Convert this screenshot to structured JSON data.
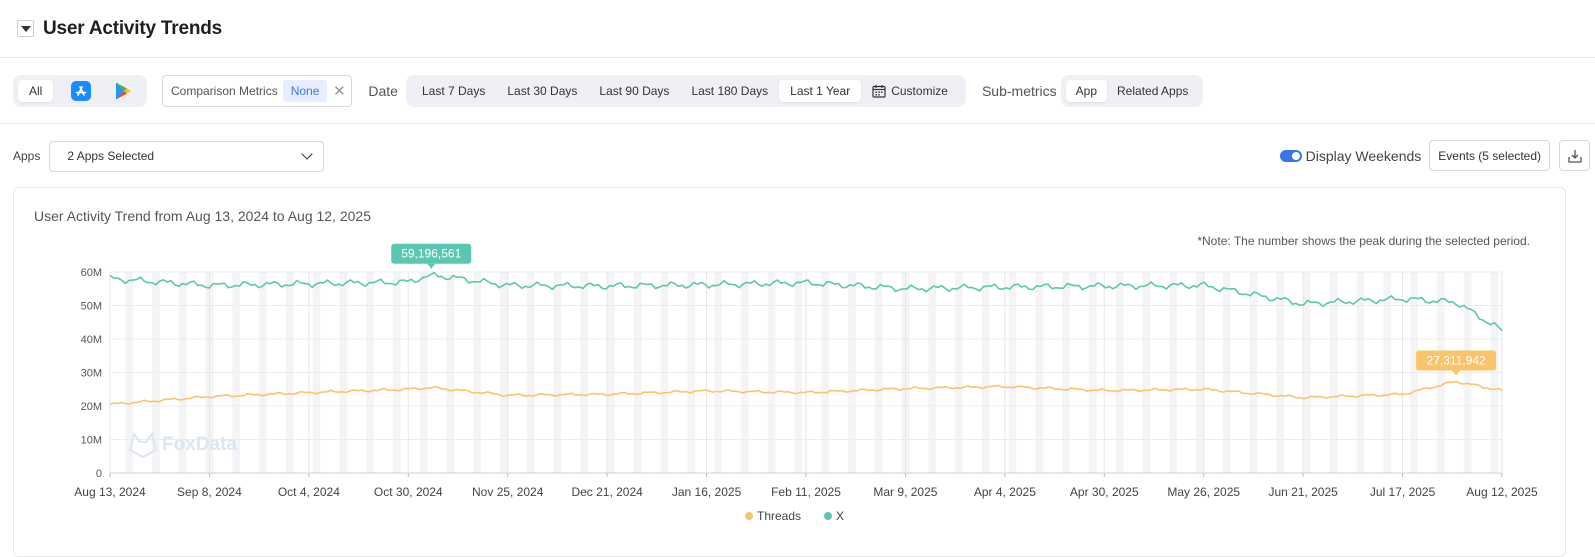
{
  "header": {
    "title": "User Activity Trends"
  },
  "filters": {
    "store_all": "All",
    "comparison_label": "Comparison Metrics",
    "comparison_value": "None",
    "date_label": "Date",
    "date_options": [
      "Last 7 Days",
      "Last 30 Days",
      "Last 90 Days",
      "Last 180 Days",
      "Last 1 Year"
    ],
    "date_selected": "Last 1 Year",
    "customize": "Customize",
    "submetrics_label": "Sub-metrics",
    "submetrics_options": [
      "App",
      "Related Apps"
    ],
    "submetrics_selected": "App"
  },
  "apps": {
    "label": "Apps",
    "selected": "2 Apps Selected",
    "display_weekends": "Display Weekends",
    "display_weekends_on": true,
    "events": "Events (5 selected)"
  },
  "chart": {
    "title": "User Activity Trend from Aug 13, 2024 to Aug 12, 2025",
    "note": "*Note: The number shows the peak during the selected period.",
    "watermark": "FoxData"
  },
  "chart_data": {
    "type": "line",
    "x_tick_labels": [
      "Aug 13, 2024",
      "Sep 8, 2024",
      "Oct 4, 2024",
      "Oct 30, 2024",
      "Nov 25, 2024",
      "Dec 21, 2024",
      "Jan 16, 2025",
      "Feb 11, 2025",
      "Mar 9, 2025",
      "Apr 4, 2025",
      "Apr 30, 2025",
      "May 26, 2025",
      "Jun 21, 2025",
      "Jul 17, 2025",
      "Aug 12, 2025"
    ],
    "y_tick_labels": [
      "0",
      "10M",
      "20M",
      "30M",
      "40M",
      "50M",
      "60M"
    ],
    "ylim": [
      0,
      60000000
    ],
    "x": [
      "Aug 13, 2024",
      "Sep 8, 2024",
      "Oct 4, 2024",
      "Oct 30, 2024",
      "Nov 5, 2024",
      "Nov 25, 2024",
      "Dec 21, 2024",
      "Jan 16, 2025",
      "Feb 11, 2025",
      "Mar 9, 2025",
      "Apr 4, 2025",
      "Apr 30, 2025",
      "May 26, 2025",
      "Jun 21, 2025",
      "Jul 17, 2025",
      "Jul 31, 2025",
      "Aug 12, 2025"
    ],
    "legend_position": "bottom",
    "grid": true,
    "series": [
      {
        "name": "Threads",
        "color": "#f9c46b",
        "values": [
          20500000,
          22800000,
          24000000,
          25000000,
          25500000,
          23200000,
          23500000,
          24500000,
          24000000,
          25200000,
          25800000,
          24600000,
          25000000,
          22500000,
          23500000,
          27311942,
          24600000
        ],
        "peak": "27,311,942",
        "peak_value": 27311942,
        "peak_x": "Jul 31, 2025"
      },
      {
        "name": "X",
        "color": "#5cc7b0",
        "values": [
          58000000,
          56000000,
          56500000,
          57000000,
          59196561,
          56000000,
          55800000,
          56200000,
          56800000,
          55000000,
          55500000,
          55800000,
          56000000,
          50500000,
          52000000,
          51000000,
          42500000
        ],
        "peak": "59,196,561",
        "peak_value": 59196561,
        "peak_x": "Nov 5, 2024"
      }
    ]
  }
}
